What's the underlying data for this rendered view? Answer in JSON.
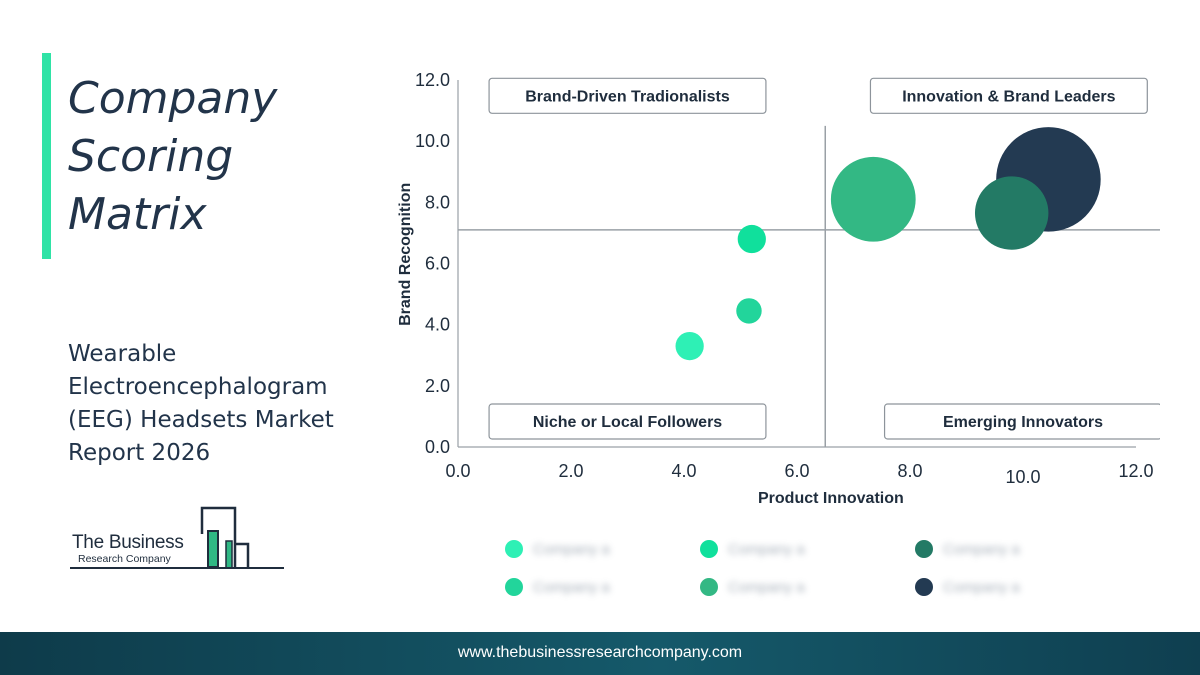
{
  "header": {
    "title_lines": [
      "Company",
      "Scoring",
      "Matrix"
    ],
    "subtitle_lines": [
      "Wearable",
      "Electroencephalogram",
      "(EEG) Headsets Market",
      "Report 2026"
    ]
  },
  "logo": {
    "name": "The Business",
    "sub": "Research Company"
  },
  "footer": {
    "url": "www.thebusinessresearchcompany.com"
  },
  "colors": {
    "accent": "#2fe3a6",
    "footer": "#15596a",
    "text": "#22344a"
  },
  "chart_data": {
    "type": "scatter",
    "xlabel": "Product Innovation",
    "ylabel": "Brand Recognition",
    "xlim": [
      0,
      12
    ],
    "ylim": [
      0,
      12
    ],
    "x_ticks": [
      "0.0",
      "2.0",
      "4.0",
      "6.0",
      "8.0",
      "10.0",
      "12.0"
    ],
    "y_ticks": [
      "0.0",
      "2.0",
      "4.0",
      "6.0",
      "8.0",
      "10.0",
      "12.0"
    ],
    "divider_x": 6.5,
    "divider_y": 7.1,
    "quadrants": [
      {
        "label": "Brand-Driven Tradionalists",
        "position": "top-left"
      },
      {
        "label": "Innovation & Brand Leaders",
        "position": "top-right"
      },
      {
        "label": "Niche or Local Followers",
        "position": "bottom-left"
      },
      {
        "label": "Emerging Innovators",
        "position": "bottom-right"
      }
    ],
    "points": [
      {
        "x": 4.1,
        "y": 3.3,
        "size": 0.5,
        "color": "#2ef0b5"
      },
      {
        "x": 5.15,
        "y": 4.45,
        "size": 0.45,
        "color": "#22d59b"
      },
      {
        "x": 5.2,
        "y": 6.8,
        "size": 0.5,
        "color": "#10e09c"
      },
      {
        "x": 7.35,
        "y": 8.1,
        "size": 1.5,
        "color": "#33b884"
      },
      {
        "x": 10.45,
        "y": 8.75,
        "size": 1.85,
        "color": "#233a52"
      },
      {
        "x": 9.8,
        "y": 7.65,
        "size": 1.3,
        "color": "#237a65"
      }
    ],
    "legend": [
      {
        "label": "Company a",
        "color": "#2ef0b5"
      },
      {
        "label": "Company a",
        "color": "#10e09c"
      },
      {
        "label": "Company a",
        "color": "#237a65"
      },
      {
        "label": "Company a",
        "color": "#22d59b"
      },
      {
        "label": "Company a",
        "color": "#33b884"
      },
      {
        "label": "Company a",
        "color": "#233a52"
      }
    ]
  }
}
